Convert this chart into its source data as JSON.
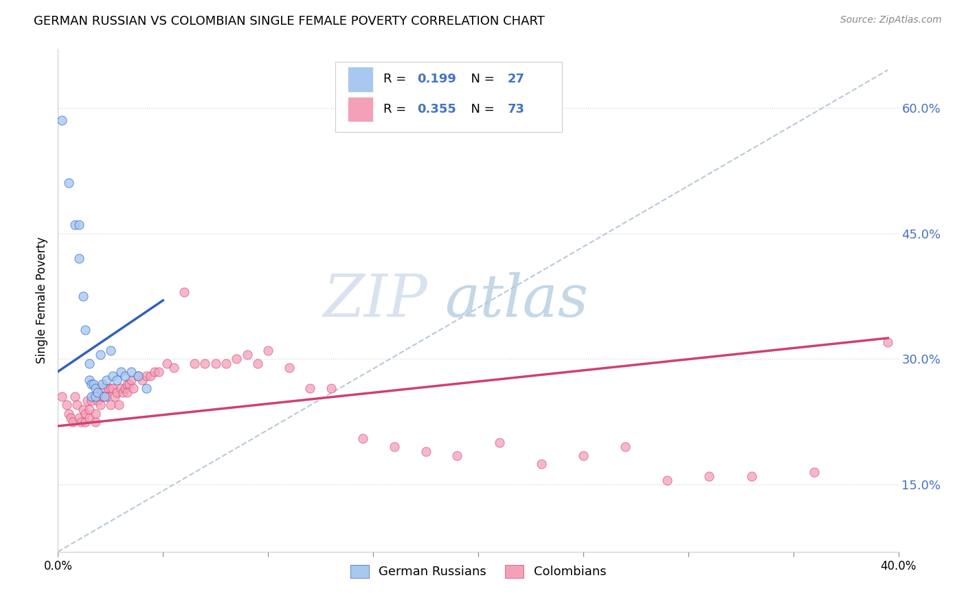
{
  "title": "GERMAN RUSSIAN VS COLOMBIAN SINGLE FEMALE POVERTY CORRELATION CHART",
  "source": "Source: ZipAtlas.com",
  "ylabel": "Single Female Poverty",
  "right_yticks": [
    "15.0%",
    "30.0%",
    "45.0%",
    "60.0%"
  ],
  "right_ytick_vals": [
    0.15,
    0.3,
    0.45,
    0.6
  ],
  "watermark_zip": "ZIP",
  "watermark_atlas": "atlas",
  "color_blue": "#a8c8f0",
  "color_pink": "#f4a0b8",
  "color_blue_line": "#3060c0",
  "color_pink_line": "#d04070",
  "color_gray_dashed": "#b8c8d8",
  "color_text_blue": "#4472c4",
  "color_text_r": "#000000",
  "xlim": [
    0.0,
    0.4
  ],
  "ylim": [
    0.07,
    0.67
  ],
  "german_russian_x": [
    0.002,
    0.005,
    0.008,
    0.01,
    0.01,
    0.012,
    0.013,
    0.015,
    0.015,
    0.016,
    0.016,
    0.017,
    0.018,
    0.018,
    0.019,
    0.02,
    0.021,
    0.022,
    0.023,
    0.025,
    0.026,
    0.028,
    0.03,
    0.032,
    0.035,
    0.038,
    0.042
  ],
  "german_russian_y": [
    0.585,
    0.51,
    0.46,
    0.42,
    0.46,
    0.375,
    0.335,
    0.295,
    0.275,
    0.27,
    0.255,
    0.27,
    0.265,
    0.255,
    0.26,
    0.305,
    0.27,
    0.255,
    0.275,
    0.31,
    0.28,
    0.275,
    0.285,
    0.28,
    0.285,
    0.28,
    0.265
  ],
  "colombian_x": [
    0.002,
    0.004,
    0.005,
    0.006,
    0.007,
    0.008,
    0.009,
    0.01,
    0.011,
    0.012,
    0.013,
    0.013,
    0.014,
    0.015,
    0.015,
    0.016,
    0.017,
    0.018,
    0.018,
    0.019,
    0.02,
    0.02,
    0.021,
    0.022,
    0.023,
    0.024,
    0.025,
    0.025,
    0.026,
    0.027,
    0.028,
    0.029,
    0.03,
    0.031,
    0.032,
    0.033,
    0.033,
    0.034,
    0.035,
    0.036,
    0.038,
    0.04,
    0.042,
    0.044,
    0.046,
    0.048,
    0.052,
    0.055,
    0.06,
    0.065,
    0.07,
    0.075,
    0.08,
    0.085,
    0.09,
    0.095,
    0.1,
    0.11,
    0.12,
    0.13,
    0.145,
    0.16,
    0.175,
    0.19,
    0.21,
    0.23,
    0.25,
    0.27,
    0.29,
    0.31,
    0.33,
    0.36,
    0.395
  ],
  "colombian_y": [
    0.255,
    0.245,
    0.235,
    0.23,
    0.225,
    0.255,
    0.245,
    0.23,
    0.225,
    0.24,
    0.235,
    0.225,
    0.25,
    0.24,
    0.23,
    0.25,
    0.255,
    0.235,
    0.225,
    0.25,
    0.265,
    0.245,
    0.255,
    0.255,
    0.255,
    0.265,
    0.245,
    0.265,
    0.265,
    0.255,
    0.26,
    0.245,
    0.265,
    0.26,
    0.265,
    0.26,
    0.27,
    0.27,
    0.275,
    0.265,
    0.28,
    0.275,
    0.28,
    0.28,
    0.285,
    0.285,
    0.295,
    0.29,
    0.38,
    0.295,
    0.295,
    0.295,
    0.295,
    0.3,
    0.305,
    0.295,
    0.31,
    0.29,
    0.265,
    0.265,
    0.205,
    0.195,
    0.19,
    0.185,
    0.2,
    0.175,
    0.185,
    0.195,
    0.155,
    0.16,
    0.16,
    0.165,
    0.32
  ],
  "blue_line_x0": 0.0,
  "blue_line_x1": 0.05,
  "blue_line_y0": 0.285,
  "blue_line_y1": 0.37,
  "pink_line_x0": 0.0,
  "pink_line_x1": 0.395,
  "pink_line_y0": 0.22,
  "pink_line_y1": 0.325,
  "dashed_line_x0": 0.0,
  "dashed_line_x1": 0.395,
  "dashed_line_y0": 0.07,
  "dashed_line_y1": 0.645
}
